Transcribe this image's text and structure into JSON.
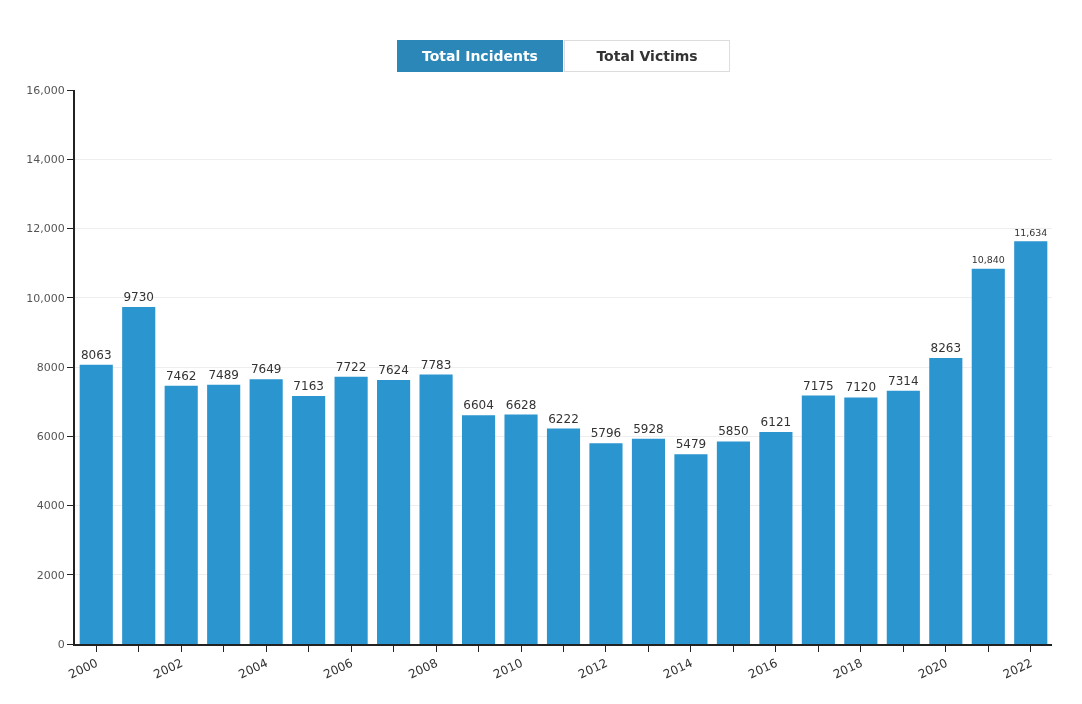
{
  "chart_data": {
    "type": "bar",
    "annotations": [
      "Total Incidents",
      "Total Victims"
    ],
    "x": [
      2000,
      2001,
      2002,
      2003,
      2004,
      2005,
      2006,
      2007,
      2008,
      2009,
      2010,
      2011,
      2012,
      2013,
      2014,
      2015,
      2016,
      2017,
      2018,
      2019,
      2020,
      2021,
      2022
    ],
    "values": [
      8063,
      9730,
      7462,
      7489,
      7649,
      7163,
      7722,
      7624,
      7783,
      6604,
      6628,
      6222,
      5796,
      5928,
      5479,
      5850,
      6121,
      7175,
      7120,
      7314,
      8263,
      10840,
      11634
    ],
    "value_labels": [
      "8063",
      "9730",
      "7462",
      "7489",
      "7649",
      "7163",
      "7722",
      "7624",
      "7783",
      "6604",
      "6628",
      "6222",
      "5796",
      "5928",
      "5479",
      "5850",
      "6121",
      "7175",
      "7120",
      "7314",
      "8263",
      "10,840",
      "11,634"
    ],
    "color": "#2b95cf",
    "xlim": [
      1999.5,
      2022.5
    ],
    "xticks": [
      2000,
      {
        "value": 2001,
        "label": null
      },
      2002,
      {
        "value": 2003,
        "label": null
      },
      2004,
      {
        "value": 2005,
        "label": null
      },
      2006,
      {
        "value": 2007,
        "label": null
      },
      2008,
      {
        "value": 2009,
        "label": null
      },
      2010,
      {
        "value": 2011,
        "label": null
      },
      2012,
      {
        "value": 2013,
        "label": null
      },
      2014,
      {
        "value": 2015,
        "label": null
      },
      2016,
      {
        "value": 2017,
        "label": null
      },
      2018,
      {
        "value": 2019,
        "label": null
      },
      2020,
      {
        "value": 2021,
        "label": null
      },
      2022
    ],
    "ylim": [
      0,
      16000
    ],
    "yticks": [
      0,
      2000,
      4000,
      6000,
      8000,
      {
        "value": 10000,
        "label": "10,000"
      },
      {
        "value": 12000,
        "label": "12,000"
      },
      {
        "value": 14000,
        "label": "14,000"
      },
      {
        "value": 16000,
        "label": "16,000"
      }
    ],
    "grid": "y",
    "legend": false
  }
}
